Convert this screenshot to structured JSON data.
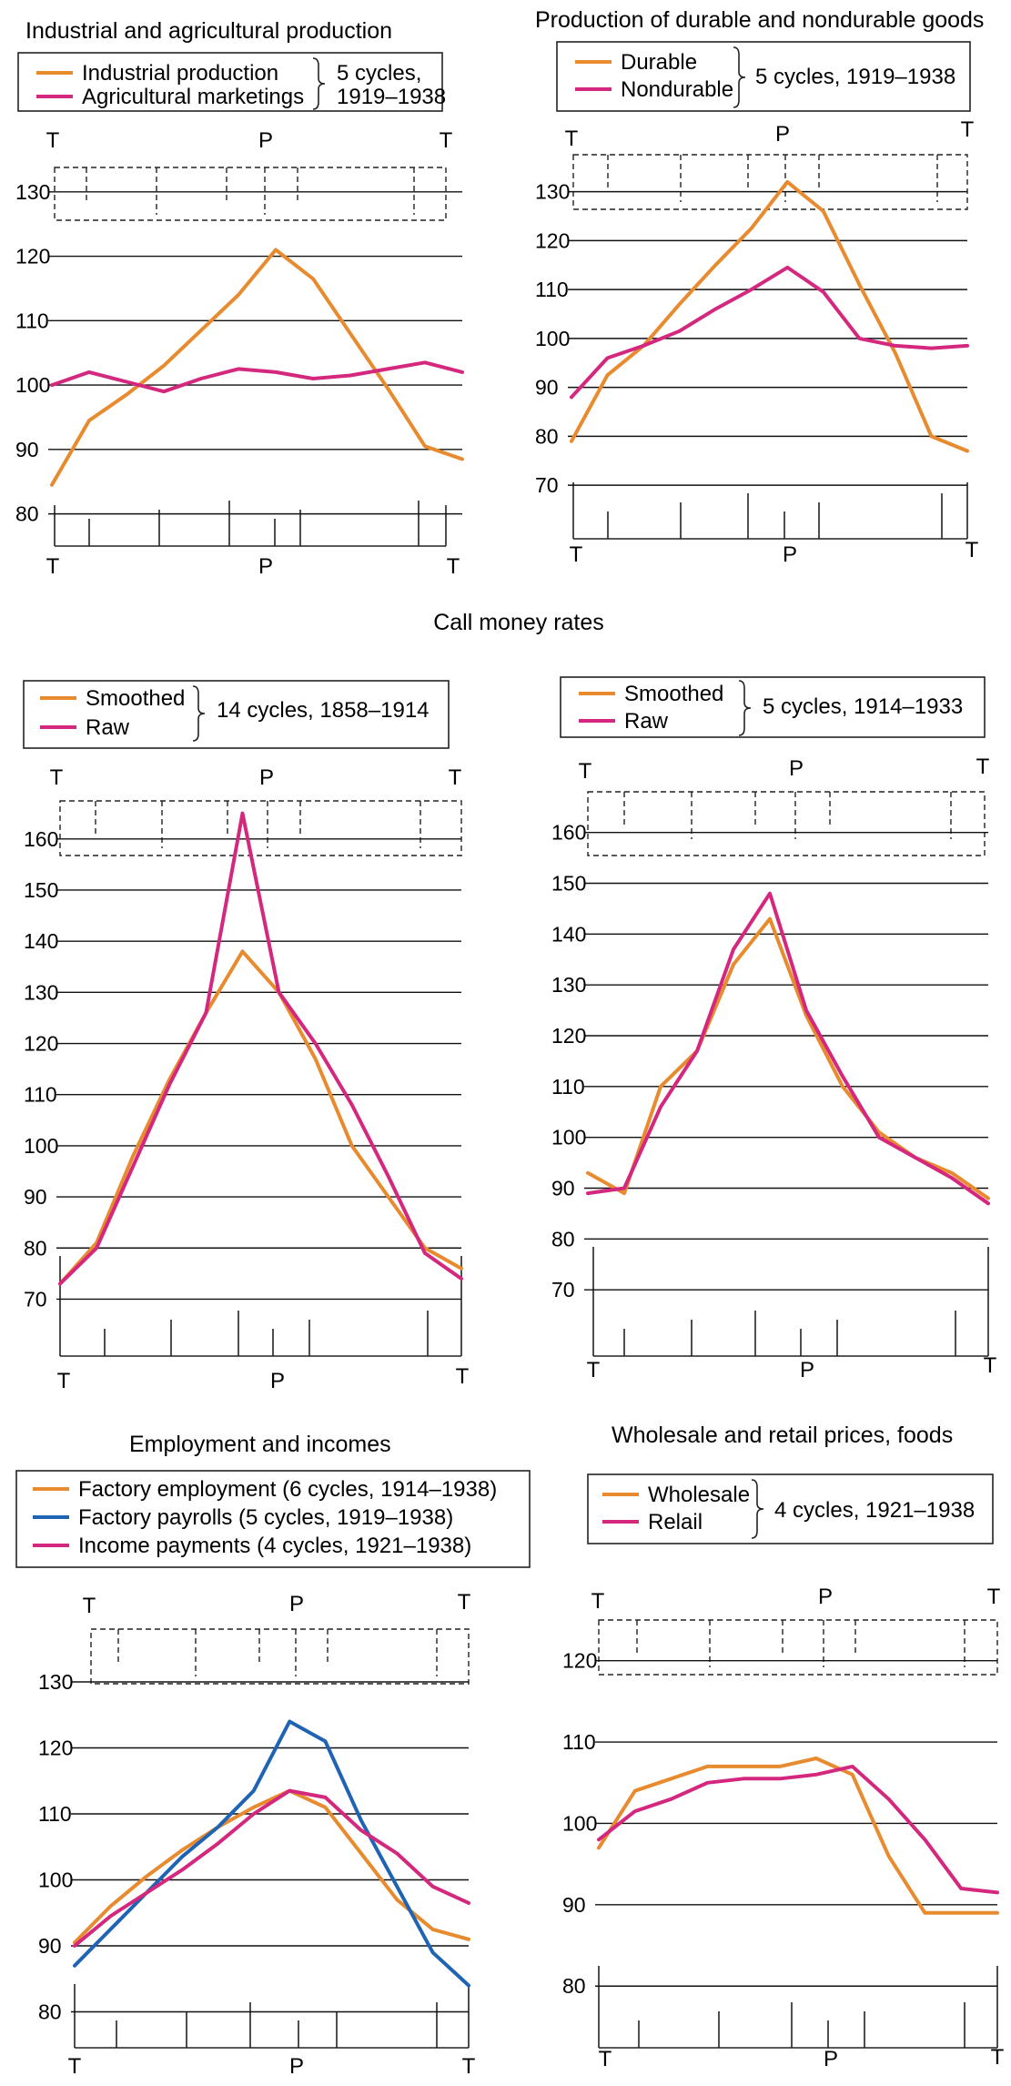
{
  "colors": {
    "orange": "#e88a2e",
    "magenta": "#d4287f",
    "blue": "#1f63b5",
    "grid": "#111111"
  },
  "section_title": "Call money rates",
  "chart_data": [
    {
      "id": "industrial",
      "type": "line",
      "title": "Industrial and agricultural production",
      "legend_note": [
        "5 cycles,",
        "1919–1938"
      ],
      "x": [
        1,
        2,
        3,
        4,
        5,
        6,
        7,
        8,
        9,
        10,
        11,
        12
      ],
      "trough_left_label": "T",
      "peak_label": "P",
      "trough_right_label": "T",
      "ylim": [
        75,
        140
      ],
      "yticks": [
        80,
        90,
        100,
        110,
        120,
        130
      ],
      "grid": true,
      "series": [
        {
          "name": "Industrial production",
          "color": "#e88a2e",
          "values": [
            84.5,
            94.5,
            98.5,
            103,
            108.5,
            114,
            121,
            116.5,
            108,
            99.5,
            90.5,
            88.5
          ]
        },
        {
          "name": "Agricultural marketings",
          "color": "#d4287f",
          "values": [
            100,
            102,
            100.5,
            99,
            101,
            102.5,
            102,
            101,
            101.5,
            102.5,
            103.5,
            102
          ]
        }
      ]
    },
    {
      "id": "durable",
      "type": "line",
      "title": "Production of durable and nondurable goods",
      "legend_note": [
        "5 cycles, 1919–1938"
      ],
      "x": [
        1,
        2,
        3,
        4,
        5,
        6,
        7,
        8,
        9,
        10,
        11,
        12
      ],
      "trough_left_label": "T",
      "peak_label": "P",
      "trough_right_label": "T",
      "ylim": [
        65,
        145
      ],
      "yticks": [
        70,
        80,
        90,
        100,
        110,
        120,
        130
      ],
      "grid": true,
      "series": [
        {
          "name": "Durable",
          "color": "#e88a2e",
          "values": [
            79,
            92.5,
            98.5,
            107,
            115,
            122.5,
            132,
            126,
            111,
            97,
            80,
            77
          ]
        },
        {
          "name": "Nondurable",
          "color": "#d4287f",
          "values": [
            88,
            96,
            98.5,
            101.5,
            106,
            110,
            114.5,
            109.5,
            100,
            98.5,
            98,
            98.5
          ]
        }
      ]
    },
    {
      "id": "callmoney-1858",
      "type": "line",
      "title": "",
      "legend_note": [
        "14 cycles, 1858–1914"
      ],
      "x": [
        1,
        2,
        3,
        4,
        5,
        6,
        7,
        8,
        9,
        10,
        11,
        12
      ],
      "trough_left_label": "T",
      "peak_label": "P",
      "trough_right_label": "T",
      "ylim": [
        61,
        171
      ],
      "yticks": [
        70,
        80,
        90,
        100,
        110,
        120,
        130,
        140,
        150,
        160
      ],
      "grid": true,
      "series": [
        {
          "name": "Smoothed",
          "color": "#e88a2e",
          "values": [
            73,
            81,
            98,
            113,
            126,
            138,
            130,
            117,
            100,
            90,
            80,
            76
          ]
        },
        {
          "name": "Raw",
          "color": "#d4287f",
          "values": [
            73,
            80,
            96,
            112,
            126,
            165,
            130,
            120,
            108,
            94,
            79,
            74
          ]
        }
      ]
    },
    {
      "id": "callmoney-1914",
      "type": "line",
      "title": "",
      "legend_note": [
        "5 cycles, 1914–1933"
      ],
      "x": [
        1,
        2,
        3,
        4,
        5,
        6,
        7,
        8,
        9,
        10,
        11,
        12
      ],
      "trough_left_label": "T",
      "peak_label": "P",
      "trough_right_label": "T",
      "ylim": [
        60,
        168
      ],
      "yticks": [
        70,
        80,
        90,
        100,
        110,
        120,
        130,
        140,
        150,
        160
      ],
      "grid": true,
      "series": [
        {
          "name": "Smoothed",
          "color": "#e88a2e",
          "values": [
            93,
            89,
            110,
            117,
            134,
            143,
            124,
            110,
            101,
            96,
            93,
            88
          ]
        },
        {
          "name": "Raw",
          "color": "#d4287f",
          "values": [
            89,
            90,
            106,
            117,
            137,
            148,
            125,
            112,
            100,
            96,
            92,
            87
          ]
        }
      ]
    },
    {
      "id": "employment",
      "type": "line",
      "title": "Employment and incomes",
      "legend_note": [],
      "x": [
        1,
        2,
        3,
        4,
        5,
        6,
        7,
        8,
        9,
        10,
        11,
        12
      ],
      "trough_left_label": "T",
      "peak_label": "P",
      "trough_right_label": "T",
      "ylim": [
        78,
        138
      ],
      "yticks": [
        80,
        90,
        100,
        110,
        120,
        130
      ],
      "grid": true,
      "series": [
        {
          "name": "Factory employment (6 cycles, 1914–1938)",
          "color": "#e88a2e",
          "values": [
            90.5,
            96,
            100.5,
            104.5,
            108,
            111,
            113.5,
            111,
            104,
            97,
            92.5,
            91
          ]
        },
        {
          "name": "Factory payrolls (5 cycles, 1919–1938)",
          "color": "#1f63b5",
          "values": [
            87,
            92.5,
            98,
            103.5,
            108,
            113.5,
            124,
            121,
            109,
            99,
            89,
            84
          ]
        },
        {
          "name": "Income payments (4 cycles, 1921–1938)",
          "color": "#d4287f",
          "values": [
            90,
            94.5,
            98,
            101.5,
            105.5,
            110,
            113.5,
            112.5,
            107.5,
            104,
            99,
            96.5
          ]
        }
      ]
    },
    {
      "id": "prices",
      "type": "line",
      "title": "Wholesale and retail prices, foods",
      "legend_note": [
        "4 cycles, 1921–1938"
      ],
      "x": [
        1,
        2,
        3,
        4,
        5,
        6,
        7,
        8,
        9,
        10,
        11,
        12
      ],
      "trough_left_label": "T",
      "peak_label": "P",
      "trough_right_label": "T",
      "ylim": [
        76,
        125
      ],
      "yticks": [
        80,
        90,
        100,
        110,
        120
      ],
      "grid": true,
      "series": [
        {
          "name": "Wholesale",
          "color": "#e88a2e",
          "values": [
            97,
            104,
            105.5,
            107,
            107,
            107,
            108,
            106,
            96,
            89,
            89,
            89
          ]
        },
        {
          "name": "Relail",
          "color": "#d4287f",
          "values": [
            98,
            101.5,
            103,
            105,
            105.5,
            105.5,
            106,
            107,
            103,
            98,
            92,
            91.5
          ]
        }
      ]
    }
  ]
}
